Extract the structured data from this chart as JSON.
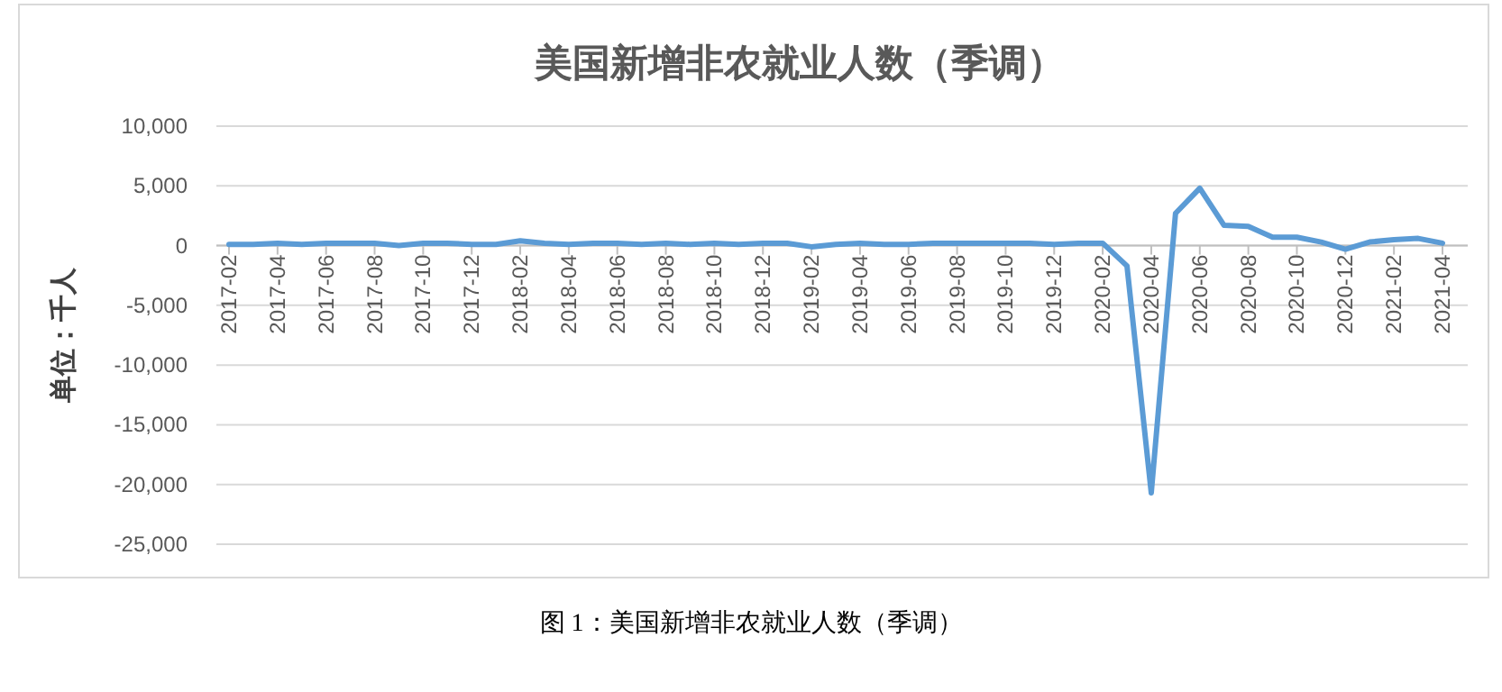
{
  "chart_data": {
    "type": "line",
    "title": "美国新增非农就业人数（季调）",
    "ylabel": "单位：千人",
    "categories": [
      "2017-02",
      null,
      "2017-04",
      null,
      "2017-06",
      null,
      "2017-08",
      null,
      "2017-10",
      null,
      "2017-12",
      null,
      "2018-02",
      null,
      "2018-04",
      null,
      "2018-06",
      null,
      "2018-08",
      null,
      "2018-10",
      null,
      "2018-12",
      null,
      "2019-02",
      null,
      "2019-04",
      null,
      "2019-06",
      null,
      "2019-08",
      null,
      "2019-10",
      null,
      "2019-12",
      null,
      "2020-02",
      null,
      "2020-04",
      null,
      "2020-06",
      null,
      "2020-08",
      null,
      "2020-10",
      null,
      "2020-12",
      null,
      "2021-02",
      null,
      "2021-04"
    ],
    "series": [
      {
        "color": "#5b9bd5",
        "values": [
          100,
          100,
          200,
          100,
          200,
          200,
          200,
          0,
          200,
          200,
          100,
          100,
          400,
          200,
          100,
          200,
          200,
          100,
          200,
          100,
          200,
          100,
          200,
          200,
          -100,
          100,
          200,
          100,
          100,
          200,
          200,
          200,
          200,
          200,
          100,
          200,
          200,
          -1700,
          -20700,
          2700,
          4800,
          1700,
          1600,
          700,
          700,
          300,
          -300,
          300,
          500,
          600,
          200
        ]
      }
    ],
    "ylim": [
      -25000,
      10000
    ],
    "yticks": [
      {
        "value": -25000,
        "label": "-25,000"
      },
      {
        "value": -20000,
        "label": "-20,000"
      },
      {
        "value": -15000,
        "label": "-15,000"
      },
      {
        "value": -10000,
        "label": "-10,000"
      },
      {
        "value": -5000,
        "label": "-5,000"
      },
      {
        "value": 0,
        "label": "0"
      },
      {
        "value": 5000,
        "label": "5,000"
      },
      {
        "value": 10000,
        "label": "10,000"
      }
    ],
    "grid": "y",
    "line_style": "solid",
    "annotations": [
      "图 1：美国新增非农就业人数（季调）"
    ]
  }
}
